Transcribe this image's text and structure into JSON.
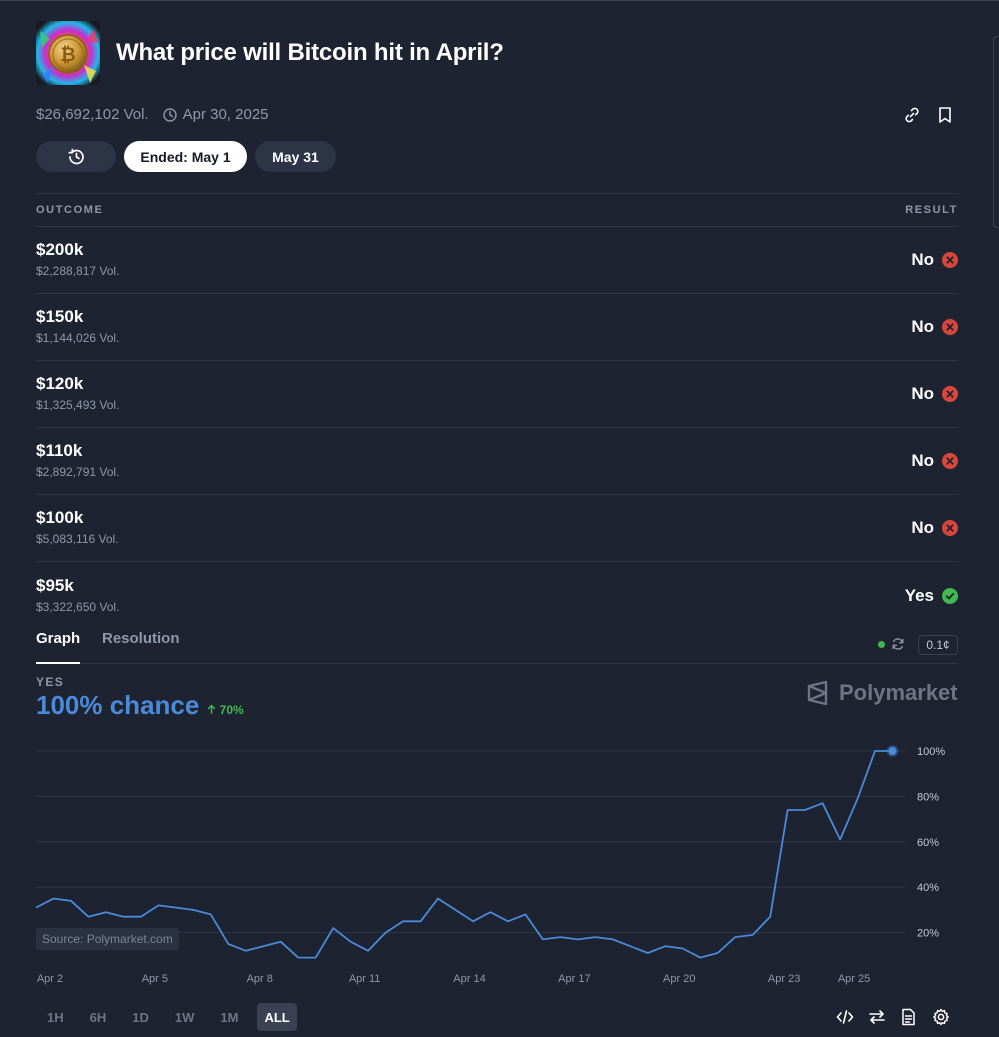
{
  "market": {
    "title": "What price will Bitcoin hit in April?",
    "volume": "$26,692,102 Vol.",
    "date": "Apr 30, 2025",
    "thumbnail_icon": "bitcoin-coin-icon"
  },
  "date_pills": [
    {
      "label": "Ended: May 1",
      "active": true
    },
    {
      "label": "May 31",
      "active": false
    }
  ],
  "table": {
    "col_outcome": "OUTCOME",
    "col_result": "RESULT",
    "rows": [
      {
        "label": "$200k",
        "volume": "$2,288,817 Vol.",
        "result": "No"
      },
      {
        "label": "$150k",
        "volume": "$1,144,026 Vol.",
        "result": "No"
      },
      {
        "label": "$120k",
        "volume": "$1,325,493 Vol.",
        "result": "No"
      },
      {
        "label": "$110k",
        "volume": "$2,892,791 Vol.",
        "result": "No"
      },
      {
        "label": "$100k",
        "volume": "$5,083,116 Vol.",
        "result": "No"
      },
      {
        "label": "$95k",
        "volume": "$3,322,650 Vol.",
        "result": "Yes"
      }
    ]
  },
  "tabs": [
    {
      "label": "Graph",
      "active": true
    },
    {
      "label": "Resolution",
      "active": false
    }
  ],
  "precision": "0.1¢",
  "graph": {
    "outcome_label": "YES",
    "chance": "100% chance",
    "change": "70%",
    "brand": "Polymarket",
    "source": "Source: Polymarket.com",
    "line_color": "#4a8ad8"
  },
  "time_ranges": [
    "1H",
    "6H",
    "1D",
    "1W",
    "1M",
    "ALL"
  ],
  "active_range": "ALL",
  "colors": {
    "yes": "#3fb950",
    "no": "#d9473c",
    "accent": "#4a8ad8"
  },
  "chart_data": {
    "type": "line",
    "x_tick_labels": [
      "Apr 2",
      "Apr 5",
      "Apr 8",
      "Apr 11",
      "Apr 14",
      "Apr 17",
      "Apr 20",
      "Apr 23",
      "Apr 25"
    ],
    "y_tick_labels": [
      "20%",
      "40%",
      "60%",
      "80%",
      "100%"
    ],
    "ylim": [
      0,
      100
    ],
    "xlim": [
      1.6,
      26.4
    ],
    "series": [
      {
        "x": [
          1.6,
          2.1,
          2.6,
          3.1,
          3.6,
          4.1,
          4.6,
          5.1,
          5.6,
          6.1,
          6.6,
          7.1,
          7.6,
          8.1,
          8.6,
          9.1,
          9.6,
          10.1,
          10.6,
          11.1,
          11.6,
          12.1,
          12.6,
          13.1,
          13.6,
          14.1,
          14.6,
          15.1,
          15.6,
          16.1,
          16.6,
          17.1,
          17.6,
          18.1,
          18.6,
          19.1,
          19.6,
          20.1,
          20.6,
          21.1,
          21.6,
          22.1,
          22.6,
          23.1,
          23.6,
          24.1,
          24.6,
          25.1,
          25.6,
          26.1
        ],
        "y": [
          31,
          35,
          34,
          27,
          29,
          27,
          27,
          32,
          31,
          30,
          28,
          15,
          12,
          14,
          16,
          9,
          9,
          22,
          16,
          12,
          20,
          25,
          25,
          35,
          30,
          25,
          29,
          25,
          28,
          17,
          18,
          17,
          18,
          17,
          14,
          11,
          14,
          13,
          9,
          11,
          18,
          19,
          27,
          74,
          74,
          77,
          61,
          79,
          100,
          100
        ]
      }
    ]
  }
}
